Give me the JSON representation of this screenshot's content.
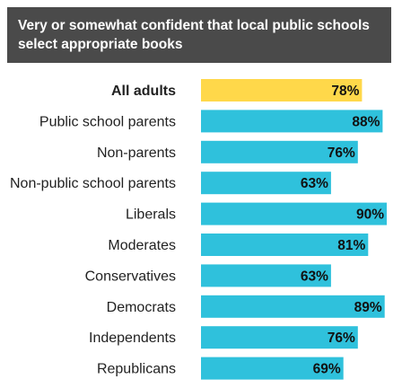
{
  "title": "Very or somewhat confident that local public schools select appropriate books",
  "colors": {
    "highlight": "#ffd84a",
    "bar": "#2fc1dc",
    "title_bg": "#4a4a4a"
  },
  "chart_data": {
    "type": "bar",
    "orientation": "horizontal",
    "title": "Very or somewhat confident that local public schools select appropriate books",
    "categories": [
      "All adults",
      "Public school parents",
      "Non-parents",
      "Non-public school parents",
      "Liberals",
      "Moderates",
      "Conservatives",
      "Democrats",
      "Independents",
      "Republicans"
    ],
    "values": [
      78,
      88,
      76,
      63,
      90,
      81,
      63,
      89,
      76,
      69
    ],
    "value_labels": [
      "78%",
      "88%",
      "76%",
      "63%",
      "90%",
      "81%",
      "63%",
      "89%",
      "76%",
      "69%"
    ],
    "highlighted_category": "All adults",
    "unit": "%",
    "xlim": [
      0,
      100
    ],
    "grid": false,
    "legend": "none"
  }
}
